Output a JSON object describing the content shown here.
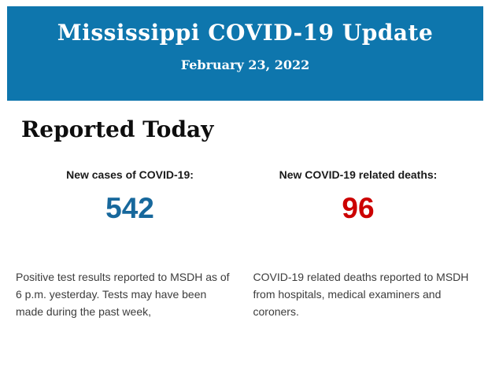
{
  "header": {
    "title": "Mississippi COVID-19 Update",
    "date": "February 23, 2022",
    "background_color": "#0e76ad",
    "text_color": "#ffffff"
  },
  "section": {
    "heading": "Reported Today"
  },
  "stats": [
    {
      "label": "New cases of COVID-19:",
      "value": "542",
      "color": "#17689c",
      "description": "Positive test results reported to MSDH as of 6 p.m. yesterday. Tests may have been made during the past week,"
    },
    {
      "label": "New COVID-19 related deaths:",
      "value": "96",
      "color": "#cc0000",
      "description": "COVID-19 related deaths reported to MSDH from hospitals, medical examiners and coroners."
    }
  ]
}
